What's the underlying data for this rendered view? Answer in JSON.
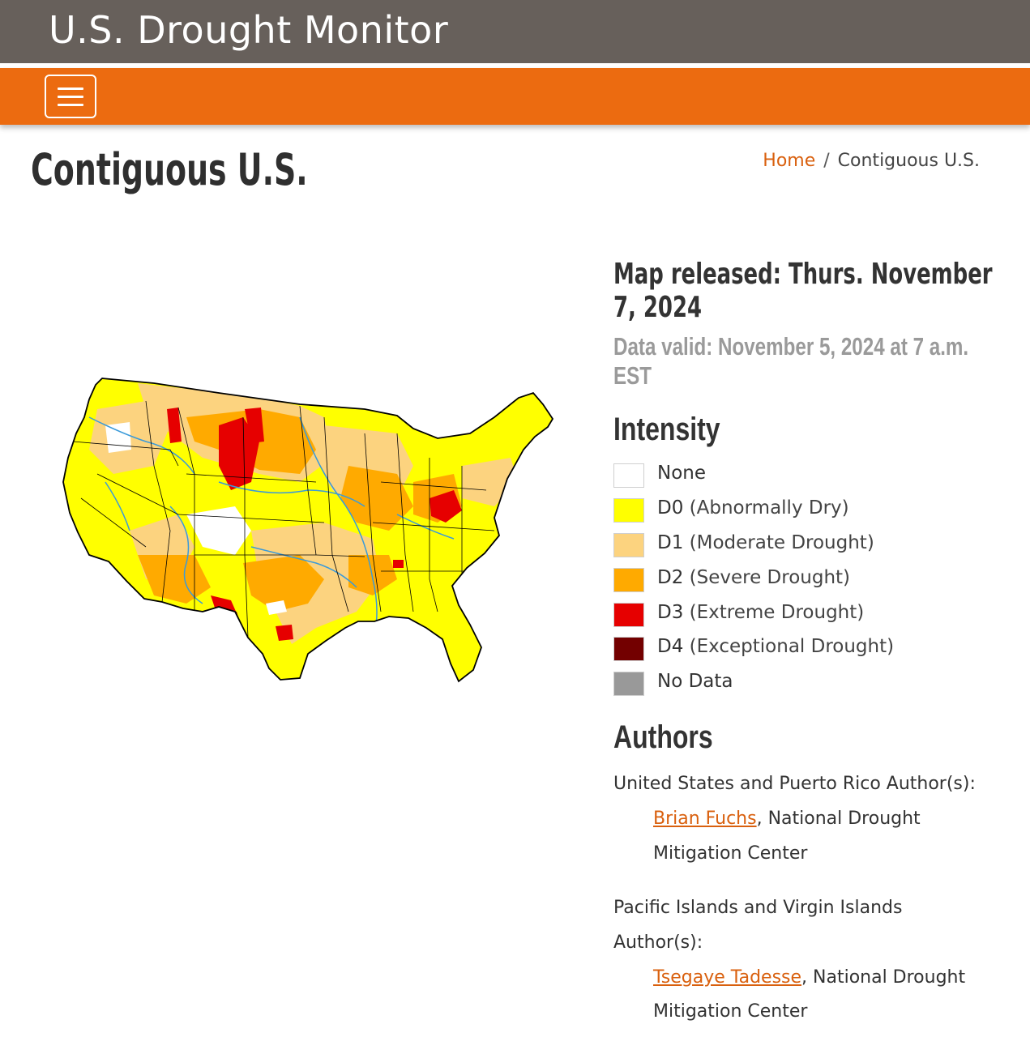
{
  "header": {
    "site_title": "U.S. Drought Monitor",
    "menu_icon": "hamburger-menu-icon"
  },
  "page": {
    "title": "Contiguous U.S."
  },
  "breadcrumb": {
    "home": "Home",
    "separator": "/",
    "current": "Contiguous U.S."
  },
  "map_info": {
    "released": "Map released: Thurs. November 7, 2024",
    "valid": "Data valid: November 5, 2024 at 7 a.m. EST"
  },
  "intensity": {
    "heading": "Intensity",
    "items": [
      {
        "code": "None",
        "desc": "",
        "color": "#ffffff"
      },
      {
        "code": "D0",
        "desc": "(Abnormally Dry)",
        "color": "#ffff00"
      },
      {
        "code": "D1",
        "desc": "(Moderate Drought)",
        "color": "#fcd37f"
      },
      {
        "code": "D2",
        "desc": "(Severe Drought)",
        "color": "#ffaa00"
      },
      {
        "code": "D3",
        "desc": "(Extreme Drought)",
        "color": "#e60000"
      },
      {
        "code": "D4",
        "desc": "(Exceptional Drought)",
        "color": "#730000"
      },
      {
        "code": "No Data",
        "desc": "",
        "color": "#999999"
      }
    ]
  },
  "authors": {
    "heading": "Authors",
    "us_pr_label": "United States and Puerto Rico Author(s):",
    "us_pr_name": "Brian Fuchs",
    "us_pr_affil_1": ", National Drought",
    "us_pr_affil_2": "Mitigation Center",
    "pi_vi_label_1": "Pacific Islands and Virgin Islands",
    "pi_vi_label_2": "Author(s):",
    "pi_vi_name": "Tsegaye Tadesse",
    "pi_vi_affil_1": ", National Drought",
    "pi_vi_affil_2": "Mitigation Center"
  },
  "colors": {
    "topbar": "#67605b",
    "navbar": "#ec6b10",
    "link": "#d9600e",
    "river": "#3a9ad9"
  }
}
